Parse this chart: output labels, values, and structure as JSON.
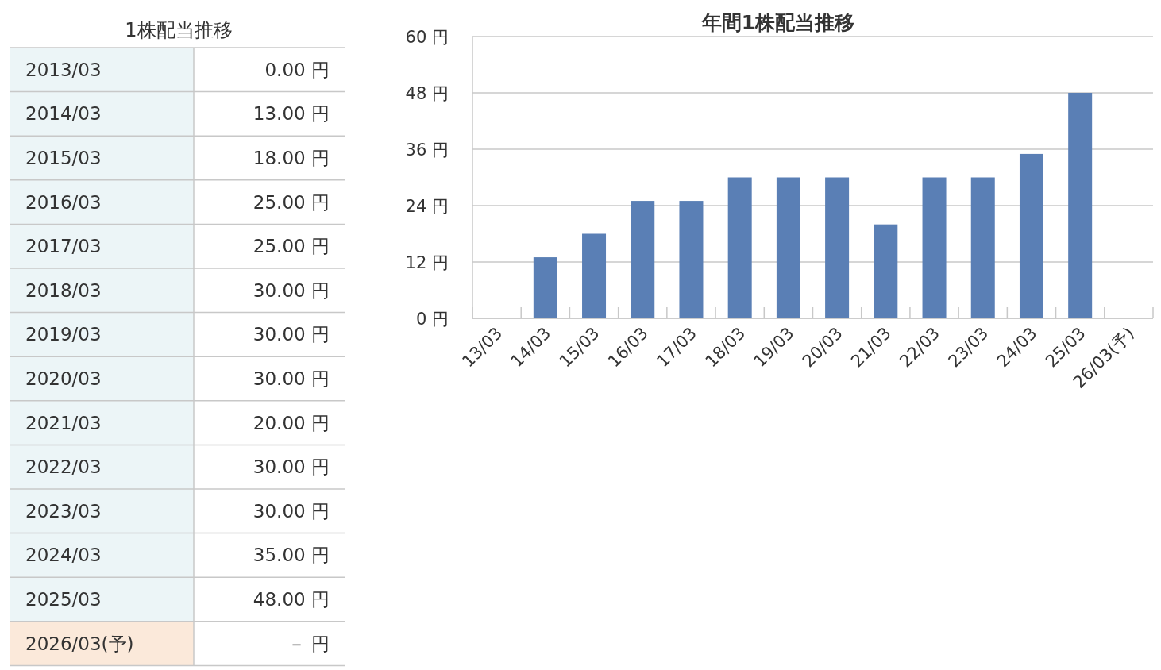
{
  "chart_data": [
    {
      "type": "other",
      "title": "1株配当推移",
      "categories": [
        "2013/03",
        "2014/03",
        "2015/03",
        "2016/03",
        "2017/03",
        "2018/03",
        "2019/03",
        "2020/03",
        "2021/03",
        "2022/03",
        "2023/03",
        "2024/03",
        "2025/03",
        "2026/03(予)"
      ],
      "value_labels": [
        "0.00 円",
        "13.00 円",
        "18.00 円",
        "25.00 円",
        "25.00 円",
        "30.00 円",
        "30.00 円",
        "30.00 円",
        "20.00 円",
        "30.00 円",
        "30.00 円",
        "35.00 円",
        "48.00 円",
        "－ 円"
      ],
      "colors": [
        "#ecf5f7",
        "#ecf5f7",
        "#ecf5f7",
        "#ecf5f7",
        "#ecf5f7",
        "#ecf5f7",
        "#ecf5f7",
        "#ecf5f7",
        "#ecf5f7",
        "#ecf5f7",
        "#ecf5f7",
        "#ecf5f7",
        "#ecf5f7",
        "#fbe9da"
      ]
    },
    {
      "type": "bar",
      "title": "年間1株配当推移",
      "categories": [
        "13/03",
        "14/03",
        "15/03",
        "16/03",
        "17/03",
        "18/03",
        "19/03",
        "20/03",
        "21/03",
        "22/03",
        "23/03",
        "24/03",
        "25/03",
        "26/03(予)"
      ],
      "values": [
        0,
        13,
        18,
        25,
        25,
        30,
        30,
        30,
        20,
        30,
        30,
        35,
        48,
        null
      ],
      "color": "#5a7fb5",
      "ylim": [
        0,
        60
      ],
      "yticks": [
        {
          "value": 0,
          "label": "0 円"
        },
        {
          "value": 12,
          "label": "12 円"
        },
        {
          "value": 24,
          "label": "24 円"
        },
        {
          "value": 36,
          "label": "36 円"
        },
        {
          "value": 48,
          "label": "48 円"
        },
        {
          "value": 60,
          "label": "60 円"
        }
      ],
      "grid": "y"
    }
  ]
}
